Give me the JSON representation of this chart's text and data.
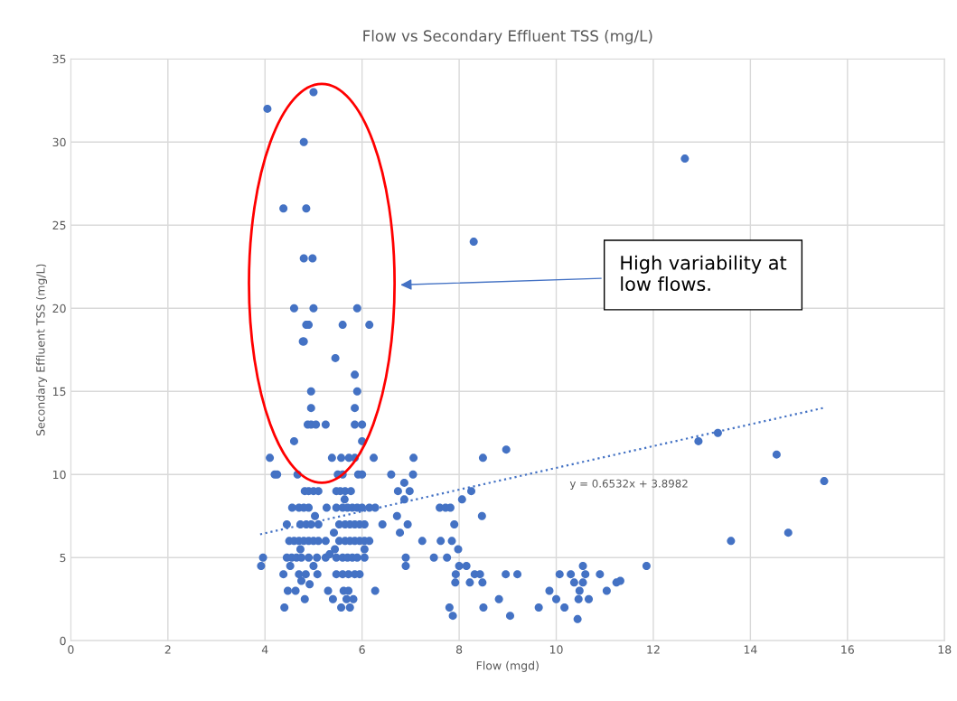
{
  "chart_data": {
    "type": "scatter",
    "title": "Flow vs Secondary Effluent TSS (mg/L)",
    "xlabel": "Flow (mgd)",
    "ylabel": "Secondary Effluent TSS (mg/L)",
    "xlim": [
      0,
      18
    ],
    "xticks": [
      0,
      2,
      4,
      6,
      8,
      10,
      12,
      14,
      16,
      18
    ],
    "ylim": [
      0,
      35
    ],
    "yticks": [
      0,
      5,
      10,
      15,
      20,
      25,
      30,
      35
    ],
    "grid": true,
    "legend": false,
    "annotations": [
      "High variability at\nlow flows.",
      "y = 0.6532x + 3.8982"
    ],
    "series": [
      {
        "color": "#4472c4",
        "marker": "circle",
        "x": [
          4.05,
          5.0,
          4.8,
          4.38,
          4.85,
          4.8,
          4.98,
          4.6,
          5.0,
          5.9,
          4.85,
          4.9,
          5.6,
          6.15,
          4.78,
          4.8,
          5.45,
          5.85,
          4.95,
          5.9,
          4.95,
          5.85,
          4.88,
          4.95,
          5.05,
          5.25,
          5.85,
          6.0,
          4.6,
          6.0,
          8.3,
          12.65,
          4.1,
          5.38,
          5.57,
          5.73,
          5.85,
          6.24,
          7.06,
          8.49,
          8.97,
          4.2,
          4.25,
          4.67,
          5.5,
          5.6,
          5.92,
          6.0,
          6.6,
          7.05,
          6.87,
          6.74,
          6.98,
          8.25,
          4.82,
          4.9,
          5.0,
          5.1,
          5.47,
          5.55,
          5.65,
          5.77,
          5.64,
          6.87,
          8.06,
          4.56,
          4.7,
          4.8,
          4.9,
          5.27,
          5.47,
          5.6,
          5.7,
          5.8,
          5.9,
          6.0,
          6.15,
          6.27,
          7.6,
          7.72,
          7.82,
          5.03,
          6.72,
          8.47,
          4.45,
          4.73,
          4.85,
          4.95,
          5.1,
          5.53,
          5.65,
          5.75,
          5.85,
          5.95,
          6.05,
          6.42,
          6.94,
          7.9,
          5.42,
          6.78,
          4.5,
          4.6,
          4.7,
          4.8,
          4.9,
          5.0,
          5.1,
          5.25,
          5.53,
          5.65,
          5.75,
          5.85,
          5.95,
          6.05,
          6.15,
          7.24,
          7.62,
          7.85,
          5.44,
          6.05,
          4.73,
          7.98,
          3.96,
          4.45,
          4.55,
          4.65,
          4.75,
          4.9,
          5.07,
          5.25,
          5.33,
          5.47,
          5.6,
          5.7,
          5.8,
          5.9,
          6.05,
          6.9,
          7.48,
          7.75,
          3.92,
          4.52,
          5.0,
          6.9,
          8.0,
          8.15,
          4.38,
          4.7,
          4.84,
          5.08,
          5.47,
          5.6,
          5.72,
          5.85,
          5.95,
          7.93,
          8.32,
          8.43,
          8.96,
          9.2,
          10.07,
          10.3,
          10.6,
          10.9,
          4.75,
          10.55,
          11.86,
          4.92,
          7.92,
          8.22,
          8.48,
          10.37,
          10.55,
          11.24,
          11.32,
          4.47,
          4.63,
          5.3,
          5.62,
          5.72,
          6.27,
          9.86,
          10.48,
          11.04,
          4.82,
          5.4,
          5.68,
          5.82,
          8.82,
          10.0,
          10.46,
          10.67,
          4.4,
          5.57,
          5.75,
          7.8,
          8.5,
          9.64,
          10.17,
          7.87,
          9.05,
          10.44,
          12.93,
          13.33,
          14.54,
          15.52,
          13.6,
          14.78
        ],
        "values": [
          32,
          33,
          30,
          26,
          26,
          23,
          23,
          20,
          20,
          20,
          19,
          19,
          19,
          19,
          18,
          18,
          17,
          16,
          15,
          15,
          14,
          14,
          13,
          13,
          13,
          13,
          13,
          13,
          12,
          12,
          24,
          29,
          11,
          11,
          11,
          11,
          11,
          11,
          11,
          11,
          11.5,
          10,
          10,
          10,
          10,
          10,
          10,
          10,
          10,
          10,
          9.5,
          9,
          9,
          9,
          9,
          9,
          9,
          9,
          9,
          9,
          9,
          9,
          8.5,
          8.5,
          8.5,
          8,
          8,
          8,
          8,
          8,
          8,
          8,
          8,
          8,
          8,
          8,
          8,
          8,
          8,
          8,
          8,
          7.5,
          7.5,
          7.5,
          7,
          7,
          7,
          7,
          7,
          7,
          7,
          7,
          7,
          7,
          7,
          7,
          7,
          7,
          6.5,
          6.5,
          6,
          6,
          6,
          6,
          6,
          6,
          6,
          6,
          6,
          6,
          6,
          6,
          6,
          6,
          6,
          6,
          6,
          6,
          5.5,
          5.5,
          5.5,
          5.5,
          5,
          5,
          5,
          5,
          5,
          5,
          5,
          5,
          5.2,
          5,
          5,
          5,
          5,
          5,
          5,
          5,
          5,
          5,
          4.5,
          4.5,
          4.5,
          4.5,
          4.5,
          4.5,
          4,
          4,
          4,
          4,
          4,
          4,
          4,
          4,
          4,
          4,
          4,
          4,
          4,
          4,
          4,
          4,
          4,
          4,
          3.6,
          4.5,
          4.5,
          3.4,
          3.5,
          3.5,
          3.5,
          3.5,
          3.5,
          3.5,
          3.6,
          3,
          3,
          3,
          3,
          3,
          3,
          3,
          3,
          3,
          2.5,
          2.5,
          2.5,
          2.5,
          2.5,
          2.5,
          2.5,
          2.5,
          2,
          2,
          2,
          2,
          2,
          2,
          2,
          1.5,
          1.5,
          1.3,
          12,
          12.5,
          11.2,
          9.6,
          6,
          6.5
        ]
      },
      {
        "type": "line",
        "marker": "none",
        "line_style": "dotted",
        "color": "#4472c4",
        "x": [
          3.9,
          15.5
        ],
        "values": [
          6.4,
          14.0
        ]
      }
    ]
  }
}
